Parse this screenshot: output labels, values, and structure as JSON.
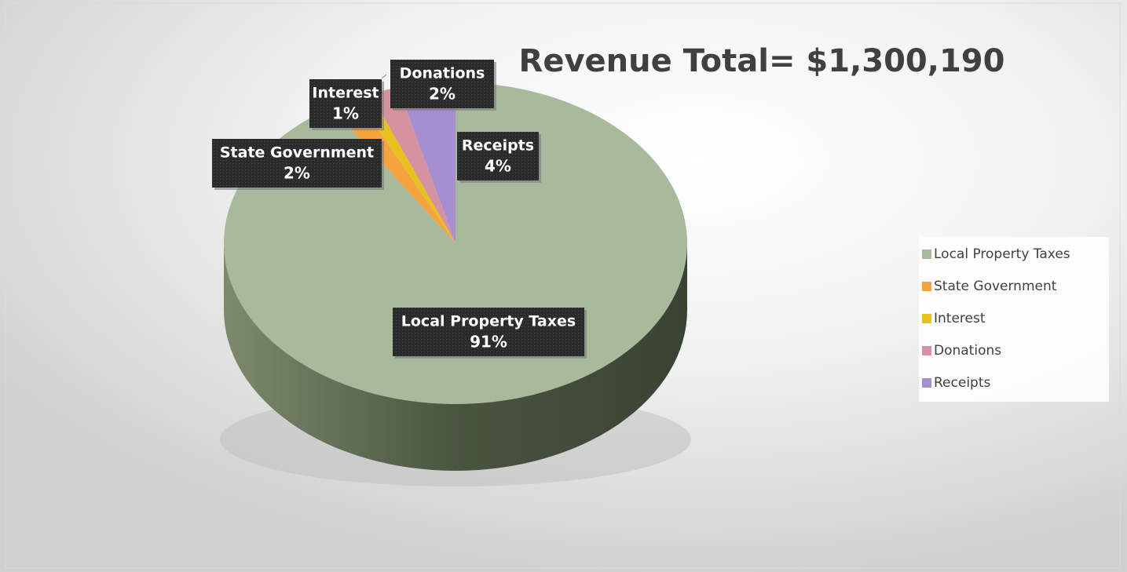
{
  "chart_data": {
    "type": "pie",
    "title": "Revenue Total= $1,300,190",
    "categories": [
      "Local Property Taxes",
      "State Government",
      "Interest",
      "Donations",
      "Receipts"
    ],
    "values": [
      91,
      2,
      1,
      2,
      4
    ],
    "value_labels": [
      "91%",
      "2%",
      "1%",
      "2%",
      "4%"
    ],
    "colors": [
      "#a9b99b",
      "#f4a340",
      "#e6c21e",
      "#d6929f",
      "#a68fd0"
    ],
    "legend": "right"
  }
}
